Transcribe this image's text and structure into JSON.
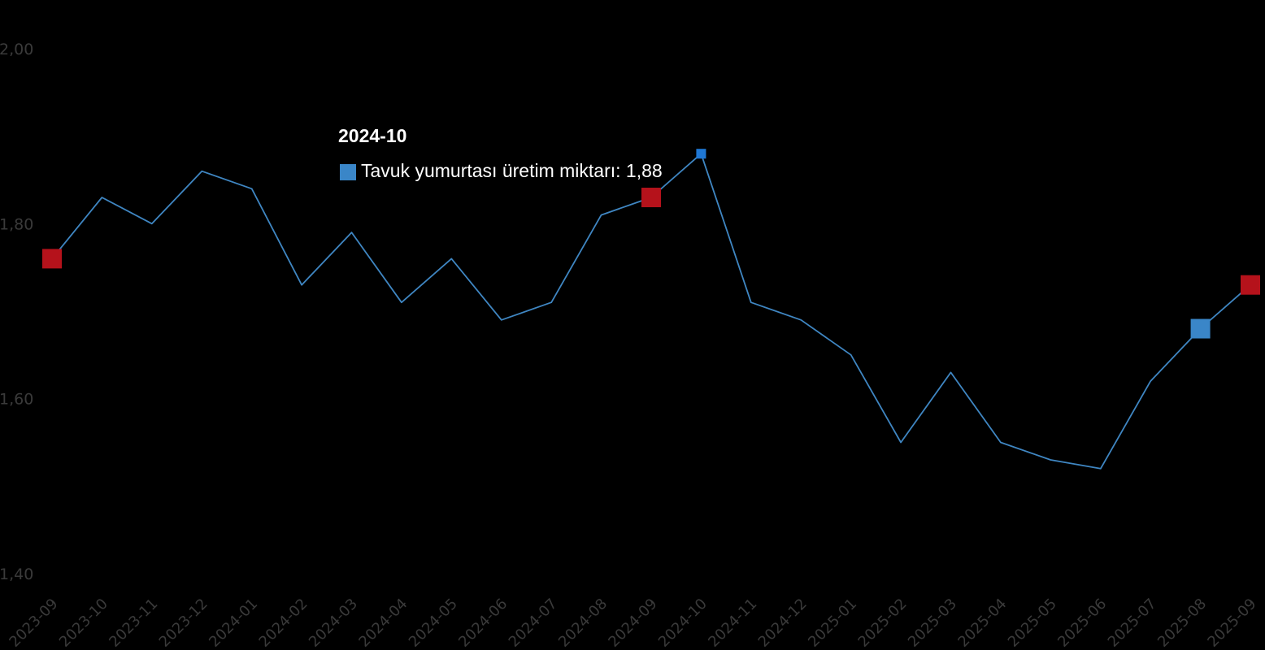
{
  "chart_data": {
    "type": "line",
    "x": [
      "2023-09",
      "2023-10",
      "2023-11",
      "2023-12",
      "2024-01",
      "2024-02",
      "2024-03",
      "2024-04",
      "2024-05",
      "2024-06",
      "2024-07",
      "2024-08",
      "2024-09",
      "2024-10",
      "2024-11",
      "2024-12",
      "2025-01",
      "2025-02",
      "2025-03",
      "2025-04",
      "2025-05",
      "2025-06",
      "2025-07",
      "2025-08",
      "2025-09"
    ],
    "series": [
      {
        "name": "Tavuk yumurtası üretim miktarı",
        "values": [
          1.76,
          1.83,
          1.8,
          1.86,
          1.84,
          1.73,
          1.79,
          1.71,
          1.76,
          1.69,
          1.71,
          1.81,
          1.83,
          1.88,
          1.71,
          1.69,
          1.65,
          1.55,
          1.63,
          1.55,
          1.53,
          1.52,
          1.62,
          1.68,
          1.73
        ],
        "color": "#3f86c2"
      }
    ],
    "y_ticks": [
      "1,40",
      "1,60",
      "1,80",
      "2,00"
    ],
    "y_tick_values": [
      1.4,
      1.6,
      1.8,
      2.0
    ],
    "ylim": [
      1.4,
      2.0
    ],
    "grid": false,
    "highlight_markers": [
      {
        "x": "2023-09",
        "color": "#b5121b"
      },
      {
        "x": "2024-09",
        "color": "#b5121b"
      },
      {
        "x": "2025-08",
        "color": "#3a86c8"
      },
      {
        "x": "2025-09",
        "color": "#b5121b"
      }
    ],
    "active_point": {
      "x": "2024-10",
      "color": "#1f77d4"
    },
    "tooltip": {
      "title": "2024-10",
      "series_label": "Tavuk yumurtası üretim miktarı",
      "value_text": "1,88",
      "swatch_color": "#3a86c8"
    }
  }
}
